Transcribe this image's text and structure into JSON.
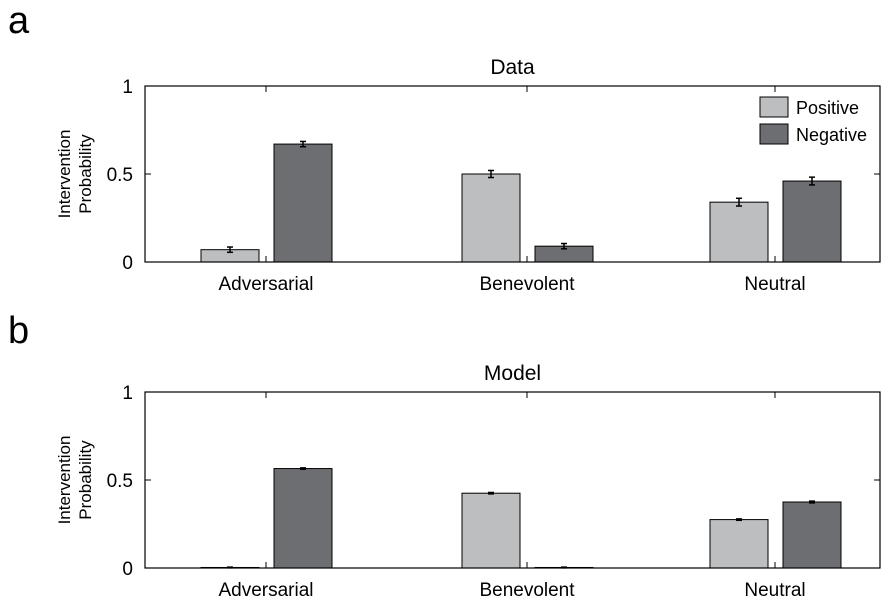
{
  "panels": [
    {
      "letter": "a"
    },
    {
      "letter": "b"
    }
  ],
  "chart_data": [
    {
      "type": "bar",
      "title": "Data",
      "ylabel": [
        "Intervention",
        "Probability"
      ],
      "categories": [
        "Adversarial",
        "Benevolent",
        "Neutral"
      ],
      "ylim": [
        0,
        1
      ],
      "yticks": [
        0,
        0.5,
        1
      ],
      "ytick_labels": [
        "0",
        "0.5",
        "1"
      ],
      "series": [
        {
          "name": "Positive",
          "color": "#bdbec0",
          "values": [
            0.07,
            0.5,
            0.34
          ],
          "errors": [
            0.015,
            0.02,
            0.022
          ]
        },
        {
          "name": "Negative",
          "color": "#6d6e71",
          "values": [
            0.67,
            0.09,
            0.46
          ],
          "errors": [
            0.015,
            0.015,
            0.022
          ]
        }
      ],
      "legend": {
        "show": true,
        "placement": "top-right"
      },
      "grid": false
    },
    {
      "type": "bar",
      "title": "Model",
      "ylabel": [
        "Intervention",
        "Probability"
      ],
      "categories": [
        "Adversarial",
        "Benevolent",
        "Neutral"
      ],
      "ylim": [
        0,
        1
      ],
      "yticks": [
        0,
        0.5,
        1
      ],
      "ytick_labels": [
        "0",
        "0.5",
        "1"
      ],
      "series": [
        {
          "name": "Positive",
          "color": "#bdbec0",
          "values": [
            0.003,
            0.425,
            0.275
          ],
          "errors": [
            0.002,
            0.004,
            0.004
          ]
        },
        {
          "name": "Negative",
          "color": "#6d6e71",
          "values": [
            0.565,
            0.003,
            0.375
          ],
          "errors": [
            0.004,
            0.002,
            0.005
          ]
        }
      ],
      "legend": {
        "show": false
      },
      "grid": false
    }
  ]
}
